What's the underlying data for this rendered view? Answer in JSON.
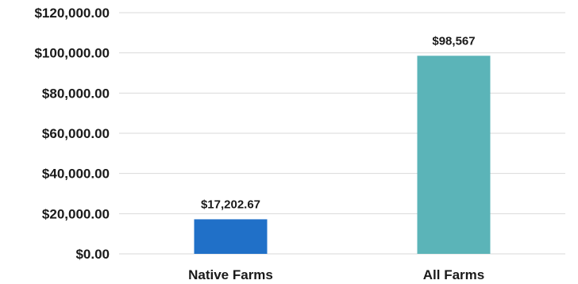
{
  "chart_data": {
    "type": "bar",
    "title": "",
    "xlabel": "",
    "ylabel": "",
    "categories": [
      "Native Farms",
      "All Farms"
    ],
    "values": [
      17202.67,
      98567
    ],
    "data_labels": [
      "$17,202.67",
      "$98,567"
    ],
    "bar_colors": [
      "#2070c8",
      "#5bb4b8"
    ],
    "ylim": [
      0,
      120000
    ],
    "yticks": [
      0,
      20000,
      40000,
      60000,
      80000,
      100000,
      120000
    ],
    "ytick_labels": [
      "$0.00",
      "$20,000.00",
      "$40,000.00",
      "$60,000.00",
      "$80,000.00",
      "$100,000.00",
      "$120,000.00"
    ],
    "grid": true,
    "legend": "none"
  }
}
